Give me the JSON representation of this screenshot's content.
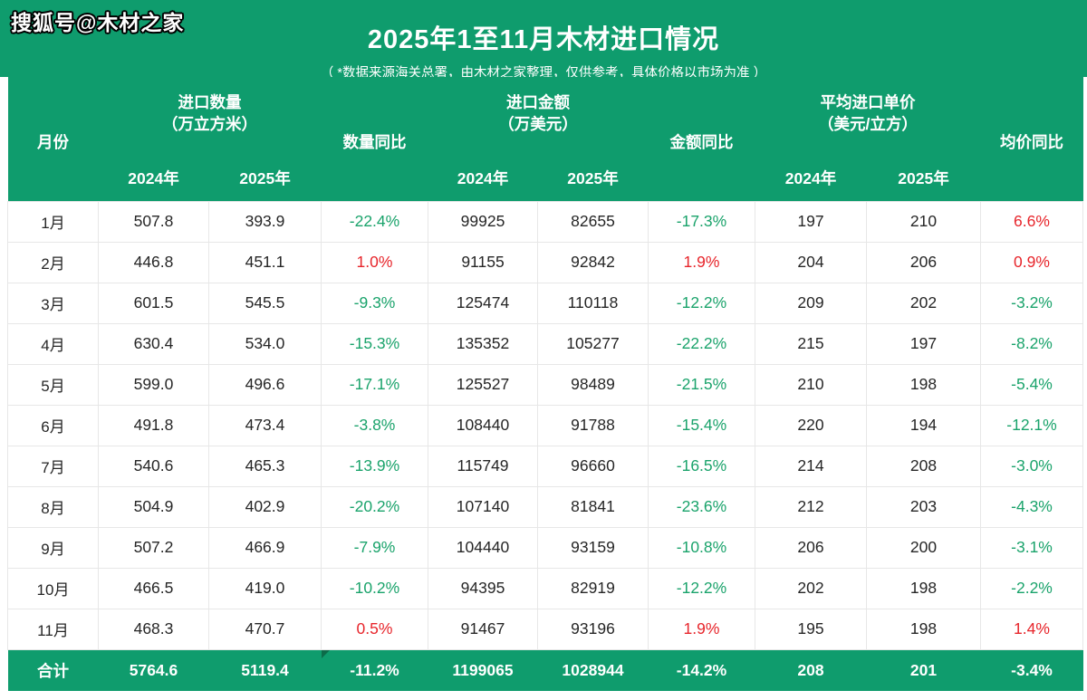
{
  "page": {
    "sohu_tag": "搜狐号@木材之家",
    "center_watermark": "木材之家",
    "title": "2025年1至11月木材进口情况",
    "subtitle": "（ *数据来源海关总署，由木材之家整理，仅供参考，具体价格以市场为准 ）"
  },
  "colors": {
    "band_green": "#0f9c6d",
    "yoy_negative_green": "#1aa36b",
    "yoy_positive_red": "#e7252b",
    "flag_dark_green": "#0c6b49",
    "body_text": "#262626"
  },
  "header": {
    "month": "月份",
    "qty_group_l1": "进口数量",
    "qty_group_l2": "（万立方米）",
    "qty_yoy": "数量同比",
    "amt_group_l1": "进口金额",
    "amt_group_l2": "（万美元）",
    "amt_yoy": "金额同比",
    "price_group_l1": "平均进口单价",
    "price_group_l2": "（美元/立方）",
    "price_yoy": "均价同比",
    "y2024": "2024年",
    "y2025": "2025年"
  },
  "chart_data": {
    "type": "table",
    "title": "2025年1至11月木材进口情况",
    "columns": [
      "月份",
      "进口数量2024年(万立方米)",
      "进口数量2025年(万立方米)",
      "数量同比",
      "进口金额2024年(万美元)",
      "进口金额2025年(万美元)",
      "金额同比",
      "平均进口单价2024年(美元/立方)",
      "平均进口单价2025年(美元/立方)",
      "均价同比"
    ],
    "yoy_columns": [
      3,
      6,
      9
    ],
    "rows": [
      [
        "1月",
        "507.8",
        "393.9",
        "-22.4%",
        "99925",
        "82655",
        "-17.3%",
        "197",
        "210",
        "6.6%"
      ],
      [
        "2月",
        "446.8",
        "451.1",
        "1.0%",
        "91155",
        "92842",
        "1.9%",
        "204",
        "206",
        "0.9%"
      ],
      [
        "3月",
        "601.5",
        "545.5",
        "-9.3%",
        "125474",
        "110118",
        "-12.2%",
        "209",
        "202",
        "-3.2%"
      ],
      [
        "4月",
        "630.4",
        "534.0",
        "-15.3%",
        "135352",
        "105277",
        "-22.2%",
        "215",
        "197",
        "-8.2%"
      ],
      [
        "5月",
        "599.0",
        "496.6",
        "-17.1%",
        "125527",
        "98489",
        "-21.5%",
        "210",
        "198",
        "-5.4%"
      ],
      [
        "6月",
        "491.8",
        "473.4",
        "-3.8%",
        "108440",
        "91788",
        "-15.4%",
        "220",
        "194",
        "-12.1%"
      ],
      [
        "7月",
        "540.6",
        "465.3",
        "-13.9%",
        "115749",
        "96660",
        "-16.5%",
        "214",
        "208",
        "-3.0%"
      ],
      [
        "8月",
        "504.9",
        "402.9",
        "-20.2%",
        "107140",
        "81841",
        "-23.6%",
        "212",
        "203",
        "-4.3%"
      ],
      [
        "9月",
        "507.2",
        "466.9",
        "-7.9%",
        "104440",
        "93159",
        "-10.8%",
        "206",
        "200",
        "-3.1%"
      ],
      [
        "10月",
        "466.5",
        "419.0",
        "-10.2%",
        "94395",
        "82919",
        "-12.2%",
        "202",
        "198",
        "-2.2%"
      ],
      [
        "11月",
        "468.3",
        "470.7",
        "0.5%",
        "91467",
        "93196",
        "1.9%",
        "195",
        "198",
        "1.4%"
      ]
    ],
    "total_row": [
      "合计",
      "5764.6",
      "5119.4",
      "-11.2%",
      "1199065",
      "1028944",
      "-14.2%",
      "208",
      "201",
      "-3.4%"
    ]
  }
}
